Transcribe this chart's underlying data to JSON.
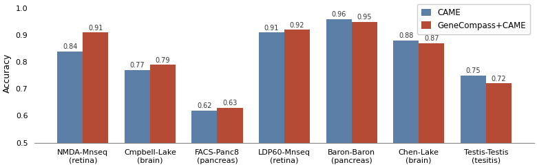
{
  "categories": [
    "NMDA-Mnseq\n(retina)",
    "Cmpbell-Lake\n(brain)",
    "FACS-Panc8\n(pancreas)",
    "LDP60-Mnseq\n(retina)",
    "Baron-Baron\n(pancreas)",
    "Chen-Lake\n(brain)",
    "Testis-Testis\n(tesitis)"
  ],
  "came_values": [
    0.84,
    0.77,
    0.62,
    0.91,
    0.96,
    0.88,
    0.75
  ],
  "genecompass_values": [
    0.91,
    0.79,
    0.63,
    0.92,
    0.95,
    0.87,
    0.72
  ],
  "came_color": "#5b7fa6",
  "genecompass_color": "#b54a35",
  "ylabel": "Accuracy",
  "ylim": [
    0.5,
    1.02
  ],
  "yticks": [
    0.5,
    0.6,
    0.7,
    0.8,
    0.9,
    1.0
  ],
  "legend_labels": [
    "CAME",
    "GeneCompass+CAME"
  ],
  "bar_width": 0.38,
  "label_fontsize": 9,
  "tick_fontsize": 8,
  "annotation_fontsize": 7,
  "legend_fontsize": 8.5
}
